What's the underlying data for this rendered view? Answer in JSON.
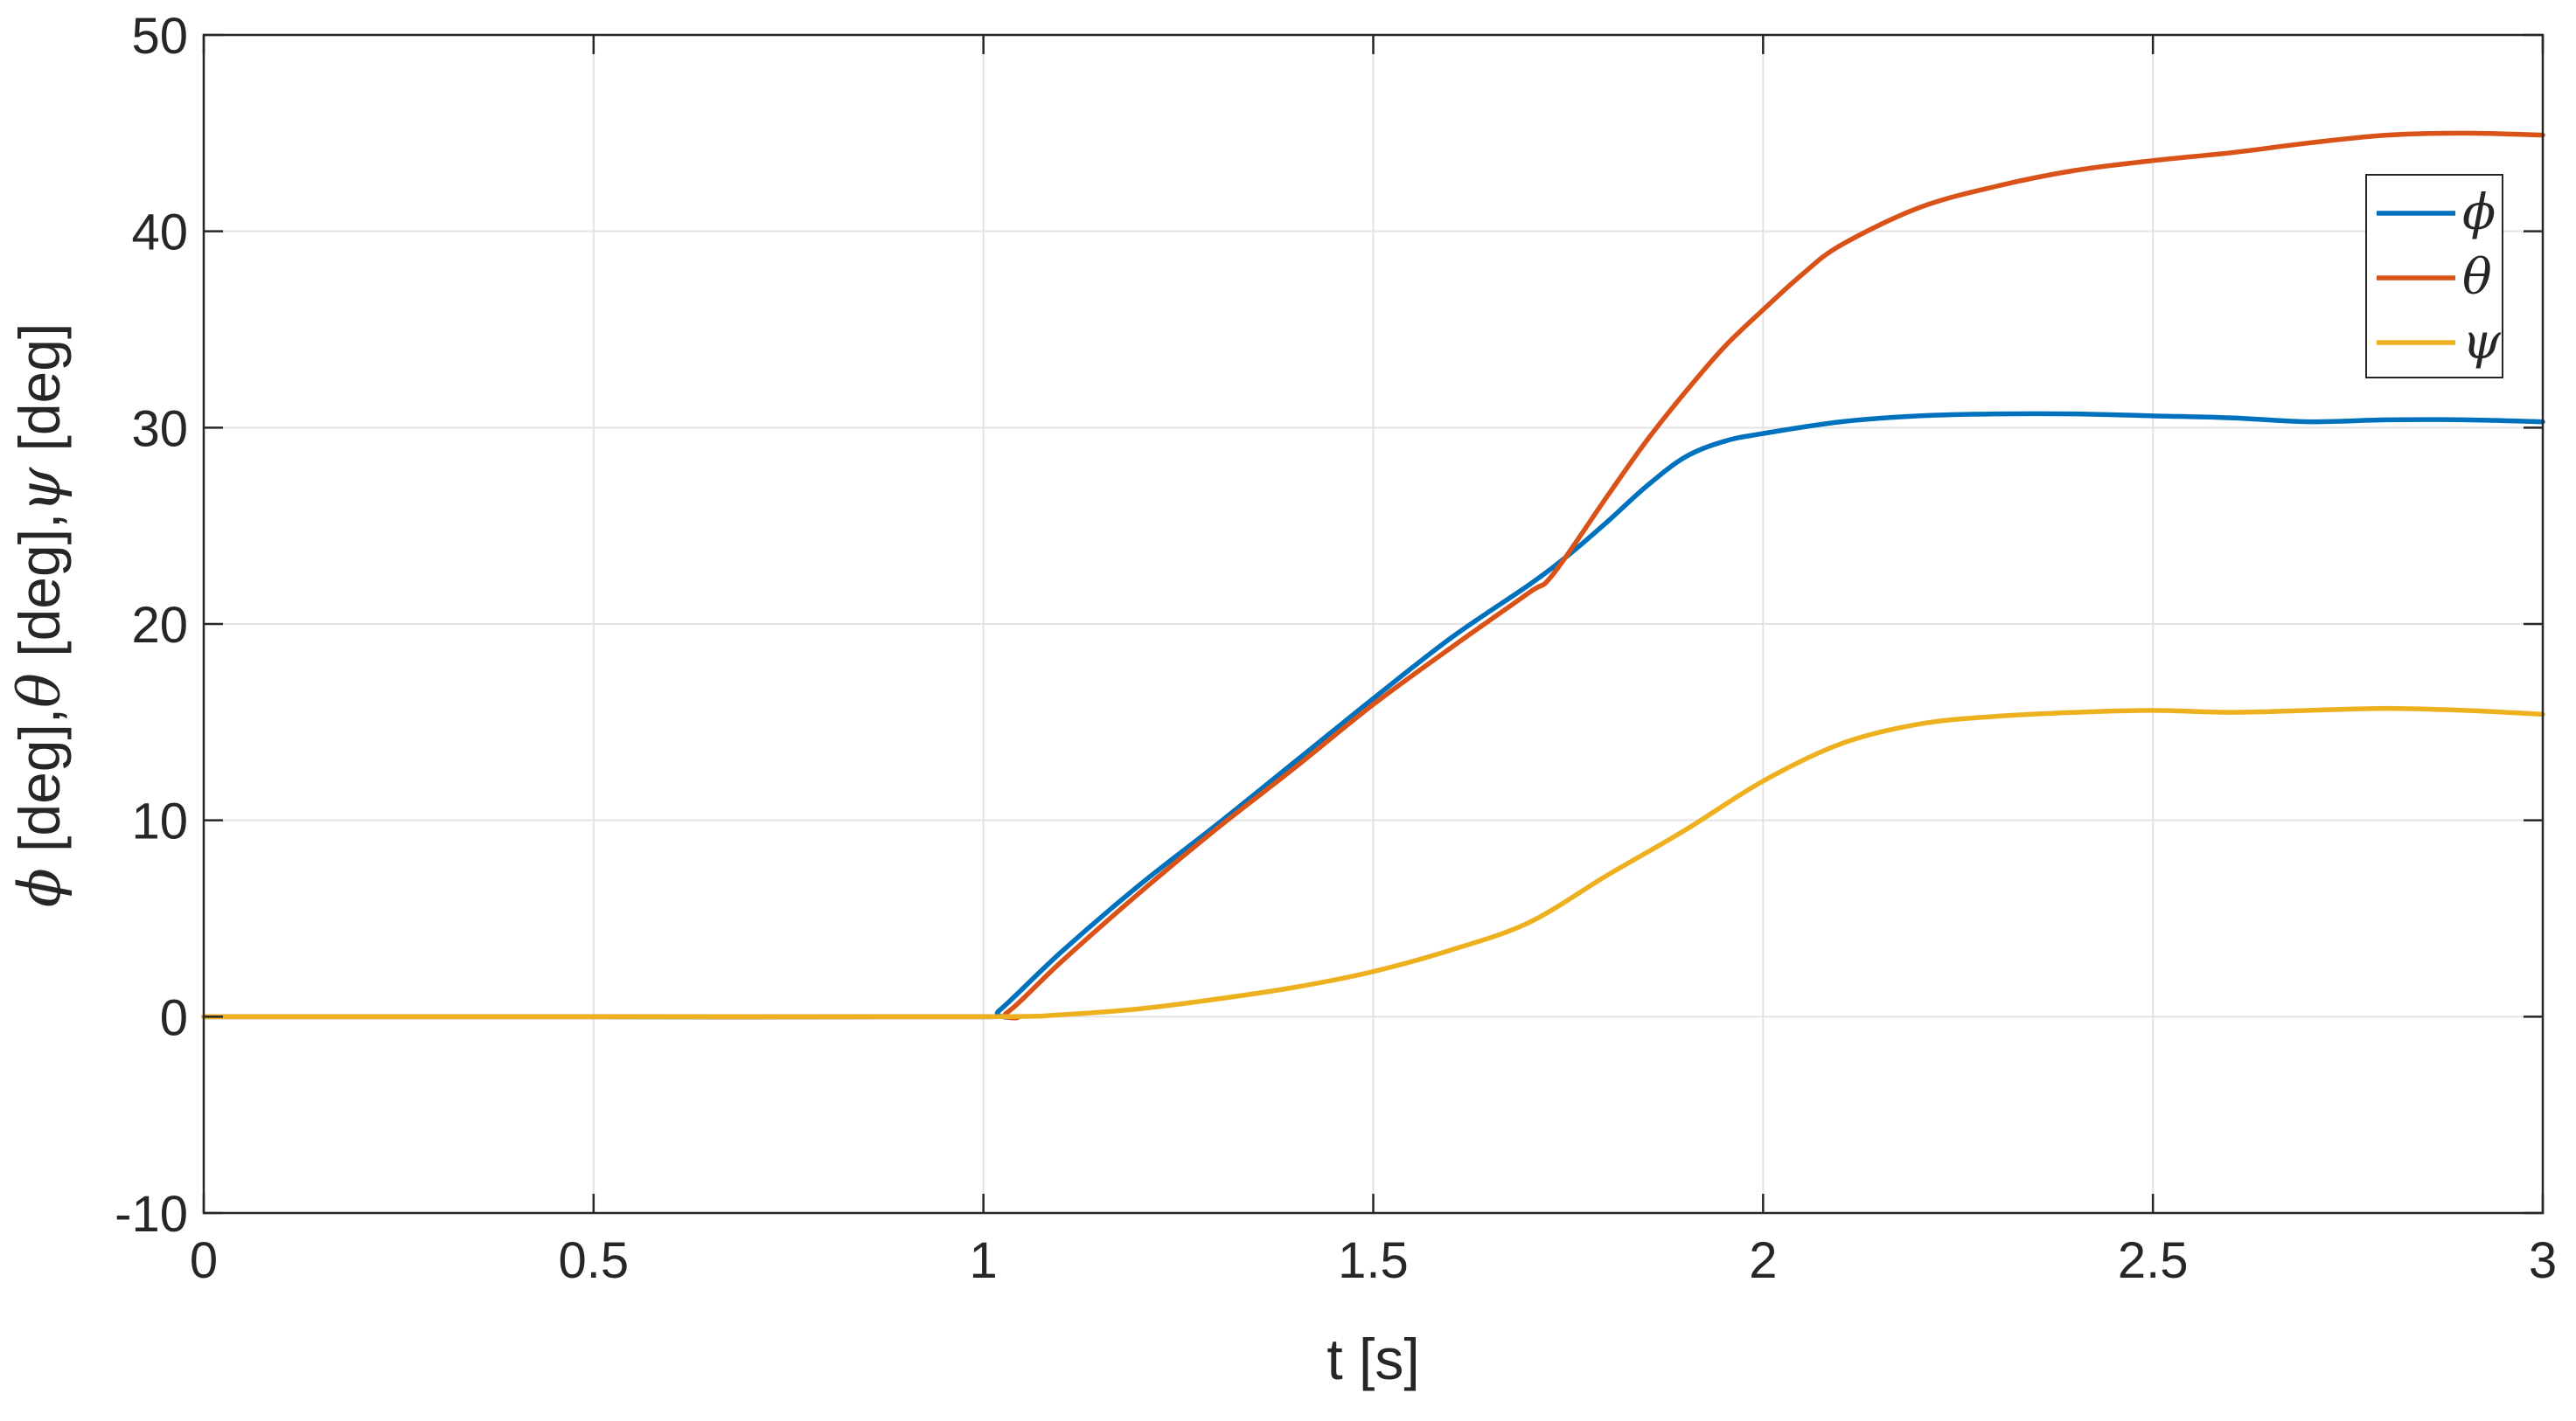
{
  "chart_data": {
    "type": "line",
    "xlabel": "t [s]",
    "ylabel": {
      "parts": [
        {
          "text": "ϕ",
          "greek": true
        },
        {
          "text": " [deg],",
          "greek": false
        },
        {
          "text": "θ",
          "greek": true
        },
        {
          "text": " [deg],",
          "greek": false
        },
        {
          "text": "ψ",
          "greek": true
        },
        {
          "text": " [deg]",
          "greek": false
        }
      ]
    },
    "xlim": [
      0,
      3
    ],
    "ylim": [
      -10,
      50
    ],
    "xticks": [
      0,
      0.5,
      1,
      1.5,
      2,
      2.5,
      3
    ],
    "xtick_labels": [
      "0",
      "0.5",
      "1",
      "1.5",
      "2",
      "2.5",
      "3"
    ],
    "yticks": [
      -10,
      0,
      10,
      20,
      30,
      40,
      50
    ],
    "ytick_labels": [
      "-10",
      "0",
      "10",
      "20",
      "30",
      "40",
      "50"
    ],
    "grid": true,
    "legend_position": "top-right",
    "colors": {
      "axis": "#262626",
      "grid": "#e3e3e3"
    },
    "series": [
      {
        "name": "ϕ",
        "color": "#0072bd",
        "x": [
          0,
          0.5,
          1.0,
          1.02,
          1.1,
          1.2,
          1.3,
          1.4,
          1.5,
          1.6,
          1.7,
          1.75,
          1.8,
          1.85,
          1.9,
          1.95,
          2.0,
          2.1,
          2.2,
          2.3,
          2.4,
          2.5,
          2.6,
          2.7,
          2.8,
          2.9,
          3.0
        ],
        "y": [
          0,
          0,
          0,
          0.3,
          3.3,
          6.7,
          9.8,
          13.0,
          16.2,
          19.3,
          22.0,
          23.5,
          25.2,
          27.0,
          28.5,
          29.3,
          29.7,
          30.3,
          30.6,
          30.7,
          30.7,
          30.6,
          30.5,
          30.3,
          30.4,
          30.4,
          30.3
        ]
      },
      {
        "name": "θ",
        "color": "#d95319",
        "x": [
          0,
          0.5,
          1.0,
          1.03,
          1.1,
          1.2,
          1.3,
          1.4,
          1.5,
          1.6,
          1.7,
          1.73,
          1.8,
          1.85,
          1.9,
          1.95,
          2.0,
          2.05,
          2.1,
          2.2,
          2.3,
          2.4,
          2.5,
          2.6,
          2.7,
          2.8,
          2.9,
          3.0
        ],
        "y": [
          0,
          0,
          0,
          0.2,
          2.8,
          6.3,
          9.6,
          12.7,
          15.9,
          18.8,
          21.6,
          22.5,
          26.5,
          29.3,
          31.8,
          34.1,
          36.0,
          37.8,
          39.3,
          41.2,
          42.3,
          43.1,
          43.6,
          44.0,
          44.5,
          44.9,
          45.0,
          44.9
        ]
      },
      {
        "name": "ψ",
        "color": "#edb120",
        "x": [
          0,
          0.5,
          1.0,
          1.1,
          1.2,
          1.3,
          1.4,
          1.5,
          1.6,
          1.7,
          1.8,
          1.9,
          2.0,
          2.1,
          2.2,
          2.3,
          2.4,
          2.5,
          2.6,
          2.7,
          2.8,
          2.9,
          3.0
        ],
        "y": [
          0,
          0,
          0,
          0.1,
          0.4,
          0.9,
          1.5,
          2.3,
          3.4,
          4.8,
          7.2,
          9.5,
          12.0,
          13.9,
          14.9,
          15.3,
          15.5,
          15.6,
          15.5,
          15.6,
          15.7,
          15.6,
          15.4
        ]
      }
    ]
  }
}
